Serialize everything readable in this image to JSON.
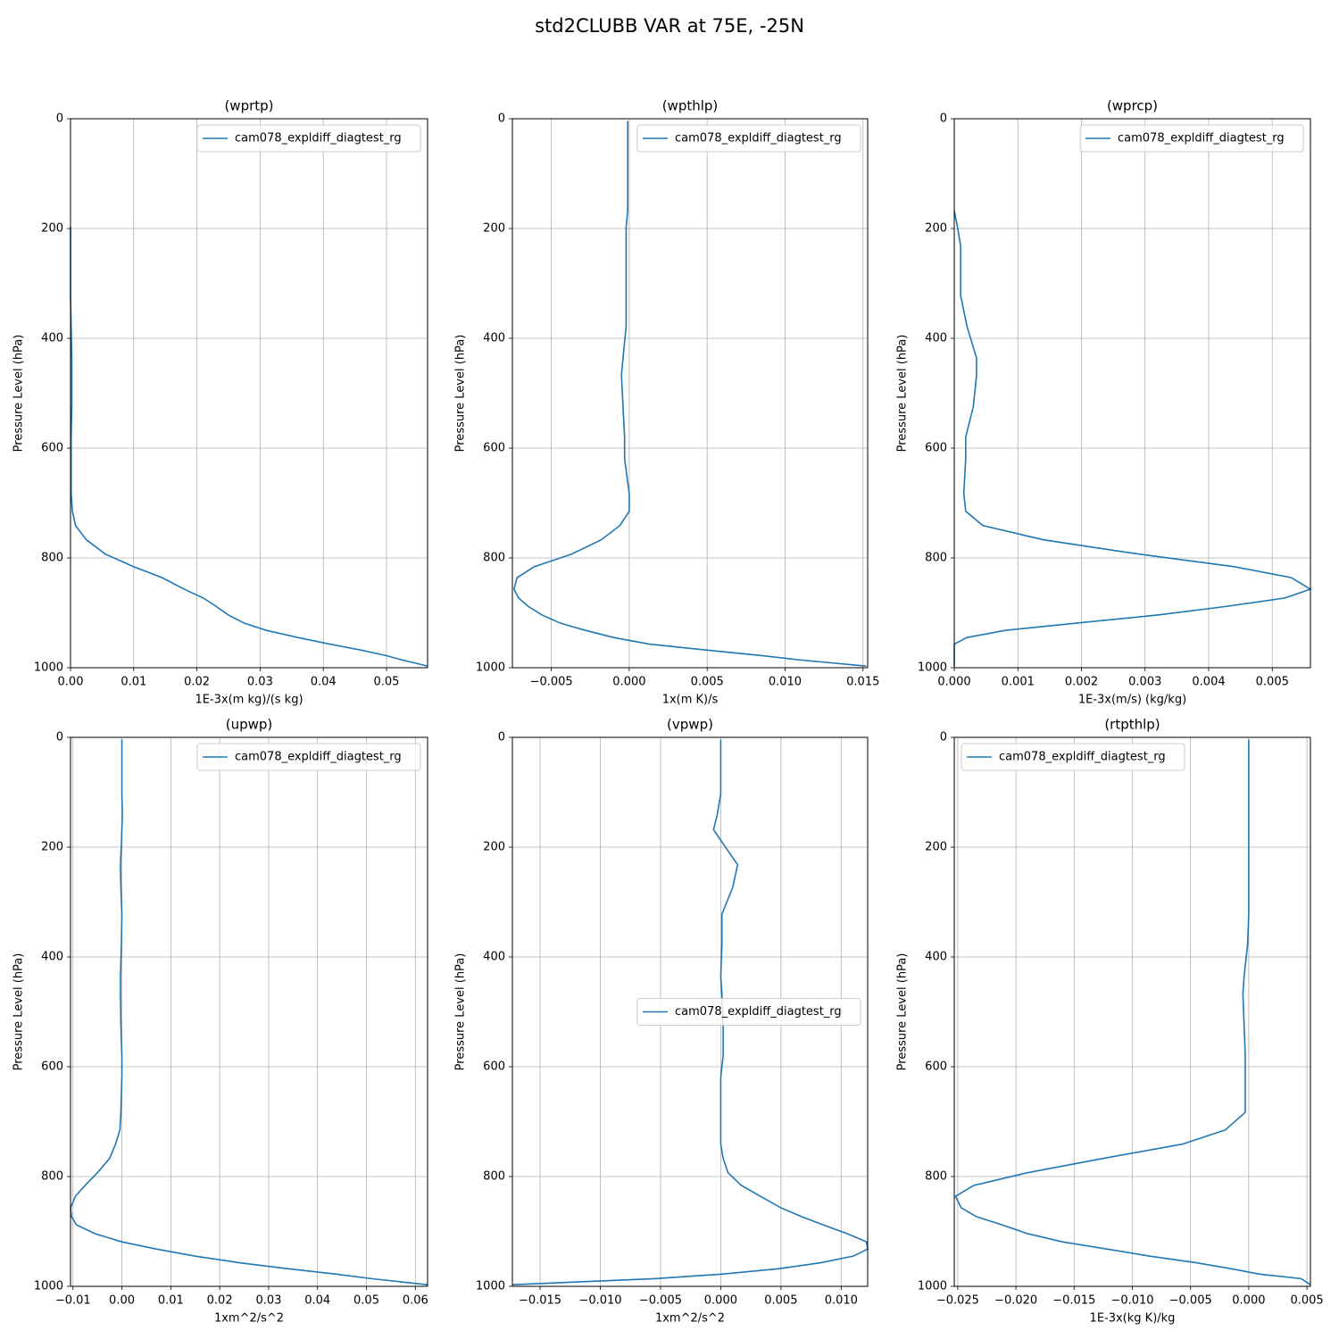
{
  "title": "std2CLUBB VAR at 75E, -25N",
  "chart_data": [
    {
      "type": "line",
      "title": "(wprtp)",
      "xlabel": "1E-3x(m kg)/(s kg)",
      "ylabel": "Pressure Level (hPa)",
      "grid": true,
      "legend": "upper right",
      "y": [
        4,
        14,
        38,
        72,
        103,
        142,
        168,
        197,
        232,
        273,
        322,
        378,
        436,
        467,
        524,
        580,
        619,
        683,
        715,
        741,
        767,
        793,
        816,
        836,
        857,
        873,
        888,
        904,
        919,
        932,
        945,
        957,
        968,
        978,
        986,
        997
      ],
      "ylim": [
        1000,
        0
      ],
      "yticks": [
        0,
        200,
        400,
        600,
        800,
        1000
      ],
      "xlim": [
        0,
        0.0565
      ],
      "xticks": [
        {
          "value": 0,
          "label": "0.00"
        },
        {
          "value": 0.01,
          "label": "0.01"
        },
        {
          "value": 0.02,
          "label": "0.02"
        },
        {
          "value": 0.03,
          "label": "0.03"
        },
        {
          "value": 0.04,
          "label": "0.04"
        },
        {
          "value": 0.05,
          "label": "0.05"
        }
      ],
      "series": [
        {
          "name": "cam078_expldiff_diagtest_rg",
          "color": "#1f77b4",
          "values": [
            null,
            null,
            null,
            null,
            null,
            null,
            null,
            0,
            0,
            0,
            0,
            0.0001,
            0.0002,
            0.0002,
            0.0002,
            0.0001,
            0.0001,
            0.0001,
            0.0003,
            0.0008,
            0.0025,
            0.0055,
            0.01,
            0.0145,
            0.018,
            0.021,
            0.023,
            0.025,
            0.0275,
            0.031,
            0.036,
            0.041,
            0.046,
            0.05,
            0.0525,
            0.0565
          ]
        }
      ]
    },
    {
      "type": "line",
      "title": "(wpthlp)",
      "xlabel": "1x(m K)/s",
      "ylabel": "Pressure Level (hPa)",
      "grid": true,
      "legend": "upper right",
      "y": [
        4,
        14,
        38,
        72,
        103,
        142,
        168,
        197,
        232,
        273,
        322,
        378,
        436,
        467,
        524,
        580,
        619,
        683,
        715,
        741,
        767,
        793,
        816,
        836,
        857,
        873,
        888,
        904,
        919,
        932,
        945,
        957,
        968,
        978,
        986,
        997
      ],
      "ylim": [
        1000,
        0
      ],
      "yticks": [
        0,
        200,
        400,
        600,
        800,
        1000
      ],
      "xlim": [
        -0.0075,
        0.0153
      ],
      "xticks": [
        {
          "value": -0.005,
          "label": "−0.005"
        },
        {
          "value": 0,
          "label": "0.000"
        },
        {
          "value": 0.005,
          "label": "0.005"
        },
        {
          "value": 0.01,
          "label": "0.010"
        },
        {
          "value": 0.015,
          "label": "0.015"
        }
      ],
      "series": [
        {
          "name": "cam078_expldiff_diagtest_rg",
          "color": "#1f77b4",
          "values": [
            -0.0001,
            -0.0001,
            -0.0001,
            -0.0001,
            -0.0001,
            -0.0001,
            -0.0001,
            -0.0002,
            -0.0002,
            -0.0002,
            -0.0002,
            -0.0002,
            -0.0004,
            -0.0005,
            -0.0004,
            -0.0003,
            -0.0003,
            0,
            0,
            -0.0006,
            -0.0018,
            -0.0037,
            -0.0061,
            -0.0072,
            -0.0074,
            -0.0071,
            -0.0065,
            -0.0056,
            -0.0044,
            -0.0028,
            -0.001,
            0.0013,
            0.005,
            0.0085,
            0.011,
            0.0152
          ]
        }
      ]
    },
    {
      "type": "line",
      "title": "(wprcp)",
      "xlabel": "1E-3x(m/s) (kg/kg)",
      "ylabel": "Pressure Level (hPa)",
      "grid": true,
      "legend": "upper right",
      "y": [
        4,
        14,
        38,
        72,
        103,
        142,
        168,
        197,
        232,
        273,
        322,
        378,
        436,
        467,
        524,
        580,
        619,
        683,
        715,
        741,
        767,
        793,
        816,
        836,
        857,
        873,
        888,
        904,
        919,
        932,
        945,
        957,
        968,
        978,
        986,
        997
      ],
      "ylim": [
        1000,
        0
      ],
      "yticks": [
        0,
        200,
        400,
        600,
        800,
        1000
      ],
      "xlim": [
        0,
        0.0056
      ],
      "xticks": [
        {
          "value": 0,
          "label": "0.000"
        },
        {
          "value": 0.001,
          "label": "0.001"
        },
        {
          "value": 0.002,
          "label": "0.002"
        },
        {
          "value": 0.003,
          "label": "0.003"
        },
        {
          "value": 0.004,
          "label": "0.004"
        },
        {
          "value": 0.005,
          "label": "0.005"
        }
      ],
      "series": [
        {
          "name": "cam078_expldiff_diagtest_rg",
          "color": "#1f77b4",
          "values": [
            null,
            null,
            null,
            null,
            null,
            null,
            0,
            5e-05,
            0.0001,
            0.0001,
            0.0001,
            0.0002,
            0.00035,
            0.00035,
            0.0003,
            0.00018,
            0.00018,
            0.00015,
            0.00018,
            0.00045,
            0.0014,
            0.0029,
            0.0044,
            0.0053,
            0.0056,
            0.0052,
            0.0043,
            0.0032,
            0.0019,
            0.0008,
            0.0002,
            0,
            0,
            0,
            0,
            0
          ]
        }
      ]
    },
    {
      "type": "line",
      "title": "(upwp)",
      "xlabel": "1xm^2/s^2",
      "ylabel": "Pressure Level (hPa)",
      "grid": true,
      "legend": "upper right",
      "y": [
        4,
        14,
        38,
        72,
        103,
        142,
        168,
        197,
        232,
        273,
        322,
        378,
        436,
        467,
        524,
        580,
        619,
        683,
        715,
        741,
        767,
        793,
        816,
        836,
        857,
        873,
        888,
        904,
        919,
        932,
        945,
        957,
        968,
        978,
        986,
        997
      ],
      "ylim": [
        1000,
        0
      ],
      "yticks": [
        0,
        200,
        400,
        600,
        800,
        1000
      ],
      "xlim": [
        -0.0105,
        0.0625
      ],
      "xticks": [
        {
          "value": -0.01,
          "label": "−0.01"
        },
        {
          "value": 0,
          "label": "0.00"
        },
        {
          "value": 0.01,
          "label": "0.01"
        },
        {
          "value": 0.02,
          "label": "0.02"
        },
        {
          "value": 0.03,
          "label": "0.03"
        },
        {
          "value": 0.04,
          "label": "0.04"
        },
        {
          "value": 0.05,
          "label": "0.05"
        },
        {
          "value": 0.06,
          "label": "0.06"
        }
      ],
      "series": [
        {
          "name": "cam078_expldiff_diagtest_rg",
          "color": "#1f77b4",
          "values": [
            0,
            0,
            0,
            0,
            0,
            0.0001,
            0,
            -0.0001,
            -0.0003,
            -0.0002,
            0,
            -0.0001,
            -0.0003,
            -0.0003,
            -0.0002,
            0,
            0,
            -0.0002,
            -0.0004,
            -0.0013,
            -0.0025,
            -0.005,
            -0.0075,
            -0.0095,
            -0.0105,
            -0.0103,
            -0.0093,
            -0.0055,
            0,
            0.007,
            0.015,
            0.024,
            0.034,
            0.044,
            0.051,
            0.0625
          ]
        }
      ]
    },
    {
      "type": "line",
      "title": "(vpwp)",
      "xlabel": "1xm^2/s^2",
      "ylabel": "Pressure Level (hPa)",
      "grid": true,
      "legend": "center right",
      "y": [
        4,
        14,
        38,
        72,
        103,
        142,
        168,
        197,
        232,
        273,
        322,
        378,
        436,
        467,
        524,
        580,
        619,
        683,
        715,
        741,
        767,
        793,
        816,
        836,
        857,
        873,
        888,
        904,
        919,
        932,
        945,
        957,
        968,
        978,
        986,
        997
      ],
      "ylim": [
        1000,
        0
      ],
      "yticks": [
        0,
        200,
        400,
        600,
        800,
        1000
      ],
      "xlim": [
        -0.0173,
        0.0122
      ],
      "xticks": [
        {
          "value": -0.015,
          "label": "−0.015"
        },
        {
          "value": -0.01,
          "label": "−0.010"
        },
        {
          "value": -0.005,
          "label": "−0.005"
        },
        {
          "value": 0,
          "label": "0.000"
        },
        {
          "value": 0.005,
          "label": "0.005"
        },
        {
          "value": 0.01,
          "label": "0.010"
        }
      ],
      "series": [
        {
          "name": "cam078_expldiff_diagtest_rg",
          "color": "#1f77b4",
          "values": [
            0,
            0,
            0,
            0,
            0,
            -0.0003,
            -0.0006,
            0.0003,
            0.0014,
            0.001,
            0.0001,
            0.0001,
            0,
            0.0001,
            0.0002,
            0.0002,
            0,
            0,
            0,
            0,
            0.0002,
            0.0006,
            0.0017,
            0.0033,
            0.005,
            0.0067,
            0.0085,
            0.0105,
            0.0121,
            0.0122,
            0.011,
            0.0083,
            0.0048,
            0,
            -0.0055,
            -0.0173
          ]
        }
      ]
    },
    {
      "type": "line",
      "title": "(rtpthlp)",
      "xlabel": "1E-3x(kg K)/kg",
      "ylabel": "Pressure Level (hPa)",
      "grid": true,
      "legend": "upper left",
      "y": [
        4,
        14,
        38,
        72,
        103,
        142,
        168,
        197,
        232,
        273,
        322,
        378,
        436,
        467,
        524,
        580,
        619,
        683,
        715,
        741,
        767,
        793,
        816,
        836,
        857,
        873,
        888,
        904,
        919,
        932,
        945,
        957,
        968,
        978,
        986,
        997
      ],
      "ylim": [
        1000,
        0
      ],
      "yticks": [
        0,
        200,
        400,
        600,
        800,
        1000
      ],
      "xlim": [
        -0.0253,
        0.0053
      ],
      "xticks": [
        {
          "value": -0.025,
          "label": "−0.025"
        },
        {
          "value": -0.02,
          "label": "−0.020"
        },
        {
          "value": -0.015,
          "label": "−0.015"
        },
        {
          "value": -0.01,
          "label": "−0.010"
        },
        {
          "value": -0.005,
          "label": "−0.005"
        },
        {
          "value": 0,
          "label": "0.000"
        },
        {
          "value": 0.005,
          "label": "0.005"
        }
      ],
      "series": [
        {
          "name": "cam078_expldiff_diagtest_rg",
          "color": "#1f77b4",
          "values": [
            0,
            0,
            0,
            0,
            0,
            0,
            0,
            0,
            0,
            0,
            0,
            -0.0001,
            -0.0004,
            -0.0005,
            -0.0004,
            -0.0003,
            -0.0003,
            -0.0003,
            -0.002,
            -0.0057,
            -0.0125,
            -0.019,
            -0.0236,
            -0.0252,
            -0.0247,
            -0.0234,
            -0.0212,
            -0.019,
            -0.016,
            -0.0122,
            -0.0085,
            -0.0045,
            -0.0015,
            0.001,
            0.0045,
            0.0053
          ]
        }
      ]
    }
  ]
}
